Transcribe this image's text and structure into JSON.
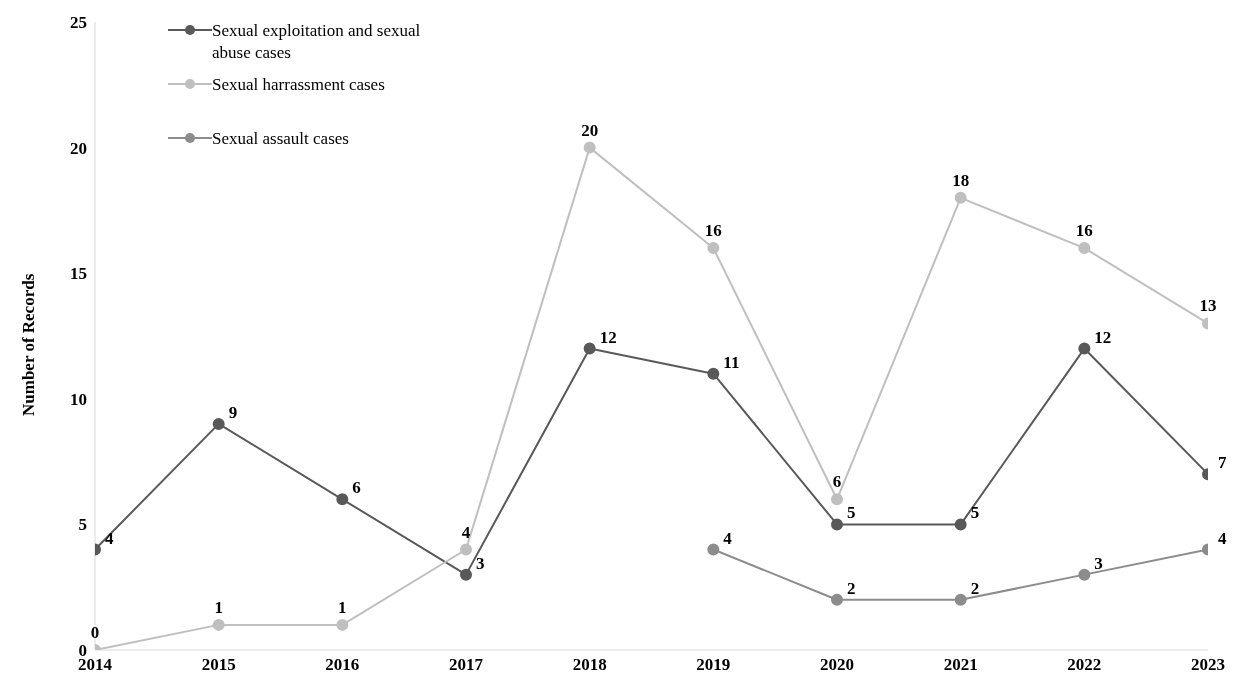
{
  "chart_data": {
    "type": "line",
    "ylabel": "Number of Records",
    "x": [
      2014,
      2015,
      2016,
      2017,
      2018,
      2019,
      2020,
      2021,
      2022,
      2023
    ],
    "xlim": [
      2014,
      2023
    ],
    "xticks": [
      2014,
      2015,
      2016,
      2017,
      2018,
      2019,
      2020,
      2021,
      2022,
      2023
    ],
    "ylim": [
      0,
      25
    ],
    "yticks": [
      0,
      5,
      10,
      15,
      20,
      25
    ],
    "series": [
      {
        "name": "Sexual exploitation and sexual abuse cases",
        "color": "#595959",
        "values": [
          4,
          9,
          6,
          3,
          12,
          11,
          5,
          5,
          12,
          7
        ]
      },
      {
        "name": "Sexual harrassment cases",
        "color": "#bfbfbf",
        "values": [
          0,
          1,
          1,
          4,
          20,
          16,
          6,
          18,
          16,
          13
        ]
      },
      {
        "name": "Sexual assault cases",
        "color": "#8c8c8c",
        "values": [
          null,
          null,
          null,
          null,
          null,
          4,
          2,
          2,
          3,
          4
        ]
      }
    ],
    "data_labels": true,
    "marker": "circle",
    "line_style": "solid",
    "grid": false,
    "legend": "top left"
  }
}
